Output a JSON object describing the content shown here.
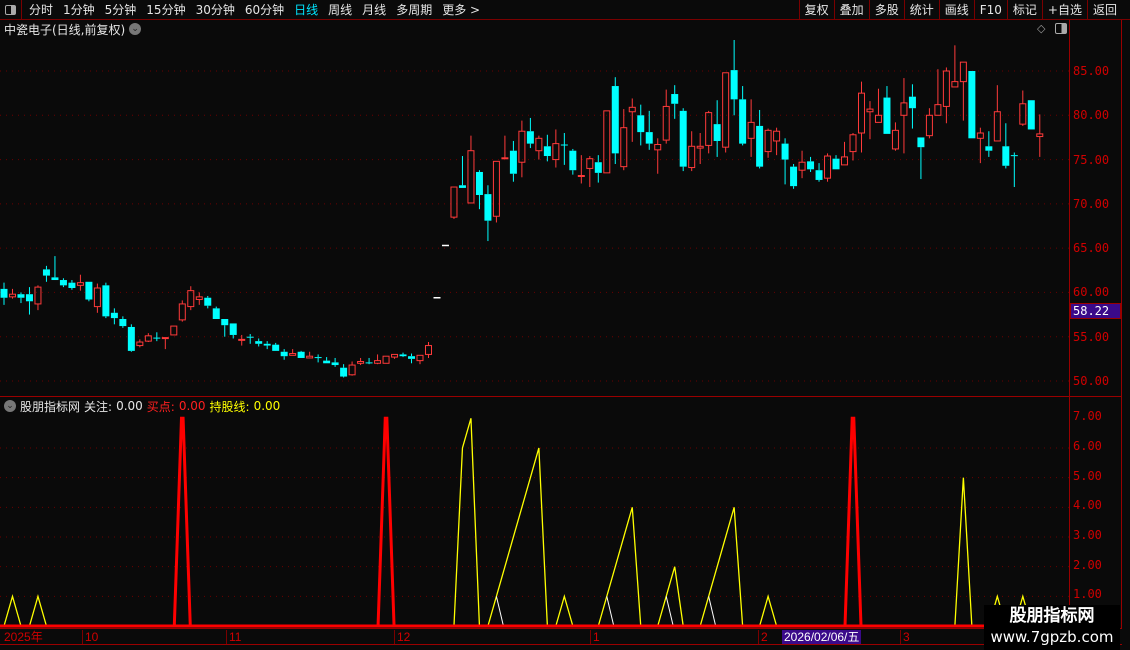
{
  "toolbar": {
    "periods": [
      "分时",
      "1分钟",
      "5分钟",
      "15分钟",
      "30分钟",
      "60分钟",
      "日线",
      "周线",
      "月线",
      "多周期",
      "更多 >"
    ],
    "active_period": "日线",
    "buttons": [
      "复权",
      "叠加",
      "多股",
      "统计",
      "画线",
      "F10",
      "标记",
      "+自选",
      "返回"
    ]
  },
  "title": "中瓷电子(日线,前复权)",
  "price_axis": {
    "labels": [
      "85.00",
      "80.00",
      "75.00",
      "70.00",
      "65.00",
      "60.00",
      "55.00",
      "50.00"
    ],
    "current": "58.22"
  },
  "indicator": {
    "name": "股朋指标网",
    "watch_label": "关注:",
    "watch_value": "0.00",
    "buy_label": "买点:",
    "buy_value": "0.00",
    "hold_label": "持股线:",
    "hold_value": "0.00",
    "axis_labels": [
      "7.00",
      "6.00",
      "5.00",
      "4.00",
      "3.00",
      "2.00",
      "1.00"
    ]
  },
  "time_axis": {
    "labels": [
      "2025年",
      "10",
      "11",
      "12",
      "1",
      "2",
      "3"
    ],
    "cursor": "2026/02/06/五"
  },
  "watermark": {
    "line1": "股朋指标网",
    "line2": "www.7gpzb.com"
  },
  "colors": {
    "up": "#ff3a3a",
    "down": "#00ffff",
    "flat": "#ffffff",
    "buy": "#ff0000",
    "hold": "#ffff00",
    "watch": "#ffffff",
    "grid": "#6a0000"
  },
  "chart_data": [
    {
      "type": "candlestick",
      "ylim": [
        49,
        89
      ],
      "grid": true,
      "ohlc": [
        [
          60.4,
          61.1,
          58.6,
          59.4
        ],
        [
          59.5,
          60.4,
          59.3,
          59.8
        ],
        [
          59.8,
          60.0,
          58.8,
          59.4
        ],
        [
          59.8,
          60.6,
          57.5,
          59.0
        ],
        [
          58.7,
          60.8,
          58.0,
          60.6
        ],
        [
          62.6,
          63.0,
          61.2,
          61.9
        ],
        [
          61.7,
          64.1,
          61.4,
          61.4
        ],
        [
          61.4,
          61.6,
          60.6,
          60.8
        ],
        [
          61.1,
          61.4,
          60.3,
          60.5
        ],
        [
          60.8,
          62.0,
          60.2,
          61.1
        ],
        [
          61.2,
          61.2,
          59.0,
          59.2
        ],
        [
          58.4,
          61.0,
          57.7,
          60.5
        ],
        [
          60.8,
          61.1,
          57.1,
          57.3
        ],
        [
          57.7,
          58.2,
          56.4,
          57.1
        ],
        [
          57.0,
          57.3,
          56.0,
          56.2
        ],
        [
          56.1,
          56.4,
          53.3,
          53.4
        ],
        [
          54.0,
          54.7,
          53.8,
          54.4
        ],
        [
          54.5,
          55.4,
          54.4,
          55.1
        ],
        [
          54.9,
          55.5,
          54.5,
          54.8
        ],
        [
          54.8,
          54.9,
          53.6,
          54.9
        ],
        [
          55.2,
          56.2,
          55.2,
          56.2
        ],
        [
          56.9,
          59.1,
          56.7,
          58.7
        ],
        [
          58.4,
          60.7,
          58.0,
          60.2
        ],
        [
          59.2,
          60.0,
          58.6,
          59.5
        ],
        [
          59.4,
          59.6,
          58.2,
          58.5
        ],
        [
          58.2,
          58.4,
          57.0,
          57.0
        ],
        [
          57.0,
          57.0,
          55.0,
          56.3
        ],
        [
          56.5,
          56.5,
          54.8,
          55.2
        ],
        [
          54.6,
          55.2,
          54.0,
          54.7
        ],
        [
          55.0,
          55.3,
          54.2,
          54.9
        ],
        [
          54.5,
          54.8,
          53.9,
          54.2
        ],
        [
          54.2,
          54.5,
          53.6,
          54.0
        ],
        [
          54.1,
          54.3,
          53.4,
          53.4
        ],
        [
          53.3,
          53.6,
          52.4,
          52.8
        ],
        [
          52.9,
          53.6,
          52.9,
          53.1
        ],
        [
          53.3,
          53.4,
          52.6,
          52.6
        ],
        [
          52.6,
          53.3,
          52.6,
          52.8
        ],
        [
          52.7,
          53.0,
          52.1,
          52.6
        ],
        [
          52.3,
          52.7,
          52.0,
          52.0
        ],
        [
          52.1,
          52.6,
          51.6,
          51.8
        ],
        [
          51.5,
          51.9,
          50.4,
          50.5
        ],
        [
          50.7,
          52.2,
          50.6,
          51.8
        ],
        [
          52.0,
          52.6,
          51.8,
          52.2
        ],
        [
          52.1,
          52.6,
          51.9,
          52.0
        ],
        [
          52.0,
          53.0,
          51.9,
          52.3
        ],
        [
          52.0,
          52.8,
          52.0,
          52.8
        ],
        [
          52.7,
          53.0,
          52.5,
          53.0
        ],
        [
          53.0,
          53.2,
          52.7,
          52.8
        ],
        [
          52.8,
          53.1,
          52.0,
          52.5
        ],
        [
          52.3,
          52.9,
          51.9,
          52.9
        ],
        [
          53.0,
          54.4,
          52.6,
          54.0
        ],
        [
          59.4,
          59.4,
          59.4,
          59.4
        ],
        [
          65.3,
          65.3,
          65.3,
          65.3
        ],
        [
          68.5,
          71.9,
          68.3,
          71.9
        ],
        [
          72.1,
          75.4,
          71.8,
          71.8
        ],
        [
          70.1,
          77.7,
          70.1,
          76.0
        ],
        [
          73.6,
          73.8,
          69.4,
          71.0
        ],
        [
          71.1,
          72.1,
          65.8,
          68.1
        ],
        [
          68.6,
          74.8,
          67.9,
          74.8
        ],
        [
          75.1,
          77.7,
          75.1,
          75.2
        ],
        [
          76.0,
          77.1,
          72.5,
          73.4
        ],
        [
          74.7,
          79.4,
          73.0,
          78.2
        ],
        [
          78.2,
          79.7,
          76.3,
          76.8
        ],
        [
          76.0,
          77.7,
          75.0,
          77.4
        ],
        [
          76.5,
          77.8,
          74.8,
          75.4
        ],
        [
          75.0,
          78.4,
          74.1,
          76.8
        ],
        [
          76.7,
          78.0,
          74.4,
          76.6
        ],
        [
          76.0,
          76.2,
          73.3,
          73.8
        ],
        [
          73.1,
          75.5,
          72.3,
          73.2
        ],
        [
          74.0,
          75.4,
          71.9,
          75.1
        ],
        [
          74.7,
          75.5,
          72.4,
          73.5
        ],
        [
          73.5,
          80.5,
          73.5,
          80.5
        ],
        [
          83.3,
          84.3,
          74.5,
          75.7
        ],
        [
          74.2,
          80.7,
          73.8,
          78.6
        ],
        [
          80.4,
          81.9,
          77.0,
          80.9
        ],
        [
          80.0,
          81.2,
          76.6,
          78.1
        ],
        [
          78.1,
          80.5,
          76.1,
          76.8
        ],
        [
          76.1,
          77.4,
          73.4,
          76.7
        ],
        [
          77.2,
          82.9,
          76.8,
          81.0
        ],
        [
          82.4,
          83.4,
          79.6,
          81.3
        ],
        [
          80.5,
          80.8,
          73.7,
          74.2
        ],
        [
          74.1,
          78.2,
          73.7,
          76.5
        ],
        [
          76.3,
          78.0,
          74.5,
          76.5
        ],
        [
          76.6,
          80.5,
          75.7,
          80.3
        ],
        [
          79.0,
          81.7,
          75.3,
          77.1
        ],
        [
          76.4,
          84.8,
          75.8,
          84.8
        ],
        [
          85.1,
          88.5,
          80.0,
          81.8
        ],
        [
          81.8,
          83.3,
          76.6,
          76.8
        ],
        [
          77.4,
          81.8,
          75.3,
          79.2
        ],
        [
          78.8,
          80.6,
          74.0,
          74.2
        ],
        [
          75.9,
          78.5,
          75.2,
          78.3
        ],
        [
          77.1,
          78.6,
          75.5,
          78.2
        ],
        [
          76.8,
          77.4,
          72.2,
          75.0
        ],
        [
          74.2,
          74.5,
          71.7,
          72.0
        ],
        [
          73.8,
          76.0,
          72.9,
          74.7
        ],
        [
          74.8,
          75.3,
          73.6,
          73.9
        ],
        [
          73.8,
          74.6,
          72.5,
          72.7
        ],
        [
          72.9,
          75.7,
          72.5,
          75.4
        ],
        [
          75.1,
          75.5,
          73.9,
          73.9
        ],
        [
          74.4,
          77.0,
          74.4,
          75.3
        ],
        [
          75.9,
          78.0,
          74.9,
          77.8
        ],
        [
          78.0,
          83.8,
          75.8,
          82.5
        ],
        [
          80.4,
          81.6,
          77.3,
          80.7
        ],
        [
          79.2,
          83.0,
          79.2,
          80.0
        ],
        [
          82.0,
          83.3,
          77.9,
          77.9
        ],
        [
          76.2,
          79.2,
          76.0,
          78.3
        ],
        [
          80.0,
          84.2,
          75.7,
          81.4
        ],
        [
          82.1,
          83.5,
          78.5,
          80.8
        ],
        [
          77.5,
          77.5,
          72.8,
          76.4
        ],
        [
          77.7,
          80.8,
          77.4,
          80.0
        ],
        [
          80.0,
          85.2,
          80.0,
          81.2
        ],
        [
          81.0,
          85.4,
          79.1,
          85.0
        ],
        [
          83.2,
          87.9,
          83.2,
          83.8
        ],
        [
          83.8,
          86.0,
          79.4,
          86.0
        ],
        [
          85.0,
          85.0,
          77.4,
          77.4
        ],
        [
          77.4,
          78.6,
          74.6,
          78.0
        ],
        [
          76.5,
          78.2,
          75.3,
          76.0
        ],
        [
          77.1,
          83.4,
          77.1,
          80.4
        ],
        [
          76.5,
          79.1,
          74.0,
          74.3
        ],
        [
          75.5,
          75.8,
          71.9,
          75.4
        ],
        [
          79.0,
          82.8,
          78.8,
          81.3
        ],
        [
          81.7,
          81.7,
          78.4,
          78.4
        ],
        [
          77.6,
          80.1,
          75.3,
          77.9
        ]
      ]
    },
    {
      "type": "line",
      "ylim": [
        0,
        7.2
      ],
      "grid": true,
      "series": [
        {
          "name": "买点",
          "sparse": {
            "21": 7,
            "45": 7,
            "100": 7
          }
        },
        {
          "name": "持股线",
          "sparse": {
            "1": 1,
            "4": 1,
            "54": 6,
            "55": 7,
            "58": 1,
            "59": 2,
            "60": 3,
            "61": 4,
            "62": 5,
            "63": 6,
            "66": 1,
            "71": 1,
            "72": 2,
            "73": 3,
            "74": 4,
            "78": 1,
            "79": 2,
            "83": 1,
            "84": 2,
            "85": 3,
            "86": 4,
            "90": 1,
            "113": 5,
            "117": 1,
            "120": 1
          }
        },
        {
          "name": "关注",
          "sparse": {
            "58": 1,
            "71": 1,
            "78": 1,
            "83": 1
          }
        }
      ]
    }
  ]
}
